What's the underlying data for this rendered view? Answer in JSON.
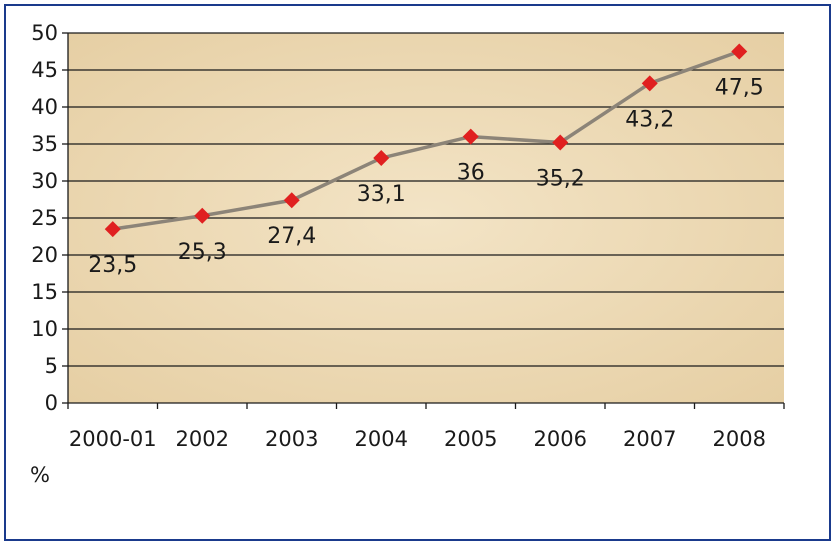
{
  "chart_data": {
    "type": "line",
    "categories": [
      "2000-01",
      "2002",
      "2003",
      "2004",
      "2005",
      "2006",
      "2007",
      "2008"
    ],
    "values": [
      23.5,
      25.3,
      27.4,
      33.1,
      36,
      35.2,
      43.2,
      47.5
    ],
    "value_labels": [
      "23,5",
      "25,3",
      "27,4",
      "33,1",
      "36",
      "35,2",
      "43,2",
      "47,5"
    ],
    "ylim": [
      0,
      50
    ],
    "yticks": [
      0,
      5,
      10,
      15,
      20,
      25,
      30,
      35,
      40,
      45,
      50
    ],
    "ylabel": "%",
    "grid": true,
    "legend": "none",
    "colors": {
      "plot_background": "#eedcb8",
      "gridline": "#1a1a1a",
      "line": "#8c8478",
      "marker": "#e02020",
      "frame": "#1a3a8c"
    }
  }
}
